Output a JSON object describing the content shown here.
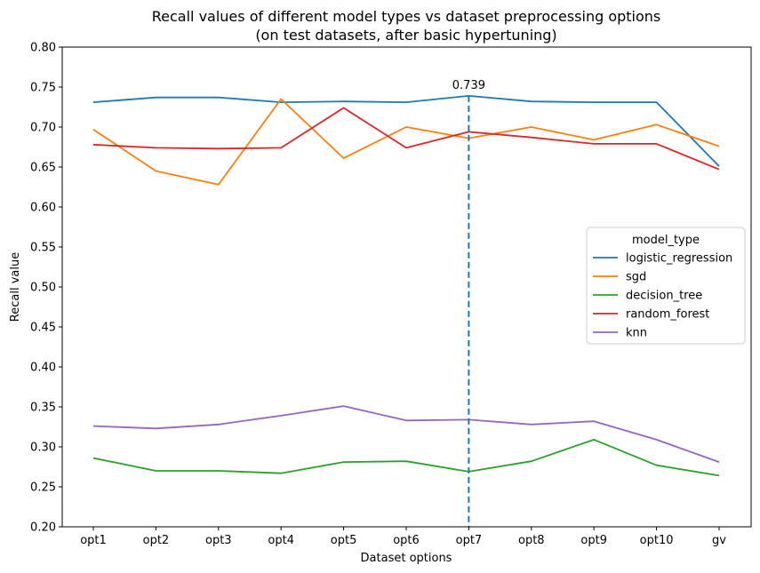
{
  "chart_data": {
    "type": "line",
    "title": "Recall values of different model types vs dataset preprocessing options",
    "subtitle": "(on test datasets, after basic hypertuning)",
    "xlabel": "Dataset options",
    "ylabel": "Recall value",
    "categories": [
      "opt1",
      "opt2",
      "opt3",
      "opt4",
      "opt5",
      "opt6",
      "opt7",
      "opt8",
      "opt9",
      "opt10",
      "gv"
    ],
    "ylim": [
      0.2,
      0.8
    ],
    "yticks": [
      "0.20",
      "0.25",
      "0.30",
      "0.35",
      "0.40",
      "0.45",
      "0.50",
      "0.55",
      "0.60",
      "0.65",
      "0.70",
      "0.75",
      "0.80"
    ],
    "grid": false,
    "legend": {
      "title": "model_type",
      "placement": "center-right"
    },
    "series": [
      {
        "name": "logistic_regression",
        "color": "#1f77b4",
        "values": [
          0.731,
          0.737,
          0.737,
          0.731,
          0.732,
          0.731,
          0.739,
          0.732,
          0.731,
          0.731,
          0.651
        ]
      },
      {
        "name": "sgd",
        "color": "#ff7f0e",
        "values": [
          0.697,
          0.645,
          0.628,
          0.735,
          0.661,
          0.7,
          0.686,
          0.7,
          0.684,
          0.703,
          0.676
        ]
      },
      {
        "name": "decision_tree",
        "color": "#2ca02c",
        "values": [
          0.286,
          0.27,
          0.27,
          0.267,
          0.281,
          0.282,
          0.269,
          0.282,
          0.309,
          0.277,
          0.264
        ]
      },
      {
        "name": "random_forest",
        "color": "#d62728",
        "values": [
          0.678,
          0.674,
          0.673,
          0.674,
          0.724,
          0.674,
          0.694,
          0.687,
          0.679,
          0.679,
          0.647
        ]
      },
      {
        "name": "knn",
        "color": "#9467bd",
        "values": [
          0.326,
          0.323,
          0.328,
          0.339,
          0.351,
          0.333,
          0.334,
          0.328,
          0.332,
          0.309,
          0.281
        ]
      }
    ],
    "annotation": {
      "label": "0.739",
      "x": "opt7",
      "y": 0.739,
      "line_color": "#1f77b4",
      "line_style": "dashed"
    }
  }
}
